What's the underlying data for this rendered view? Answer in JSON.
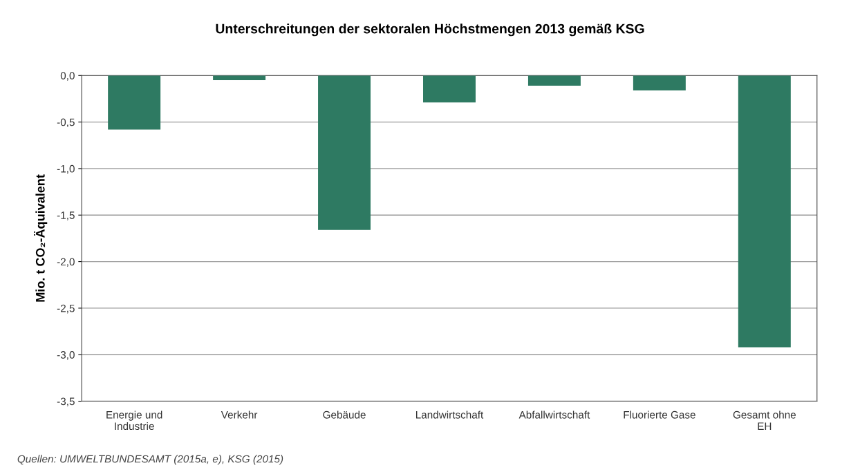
{
  "chart_data": {
    "type": "bar",
    "title": "Unterschreitungen der sektoralen Höchstmengen 2013 gemäß KSG",
    "ylabel": "Mio. t CO₂-Äquivalent",
    "categories": [
      "Energie und\nIndustrie",
      "Verkehr",
      "Gebäude",
      "Landwirtschaft",
      "Abfallwirtschaft",
      "Fluorierte Gase",
      "Gesamt ohne\nEH"
    ],
    "values": [
      -0.58,
      -0.05,
      -1.66,
      -0.29,
      -0.11,
      -0.16,
      -2.92
    ],
    "color": "#2e7a62",
    "ylim": [
      -3.5,
      0
    ],
    "yticks": [
      {
        "value": 0,
        "label": "0,0"
      },
      {
        "value": -0.5,
        "label": "-0,5"
      },
      {
        "value": -1,
        "label": "-1,0"
      },
      {
        "value": -1.5,
        "label": "-1,5"
      },
      {
        "value": -2,
        "label": "-2,0"
      },
      {
        "value": -2.5,
        "label": "-2,5"
      },
      {
        "value": -3,
        "label": "-3,0"
      },
      {
        "value": -3.5,
        "label": "-3,5"
      }
    ],
    "grid": "y",
    "annotations": [
      "Quellen: UMWELTBUNDESAMT (2015a, e), KSG (2015)"
    ]
  }
}
